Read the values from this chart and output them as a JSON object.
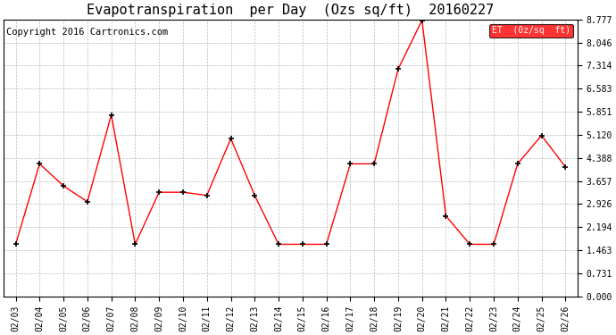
{
  "title": "Evapotranspiration  per Day  (Ozs sq/ft)  20160227",
  "copyright": "Copyright 2016 Cartronics.com",
  "legend_label": "ET  (0z/sq  ft)",
  "dates": [
    "02/03",
    "02/04",
    "02/05",
    "02/06",
    "02/07",
    "02/08",
    "02/09",
    "02/10",
    "02/11",
    "02/12",
    "02/13",
    "02/14",
    "02/15",
    "02/16",
    "02/17",
    "02/18",
    "02/19",
    "02/20",
    "02/21",
    "02/22",
    "02/23",
    "02/24",
    "02/25",
    "02/26"
  ],
  "values": [
    1.65,
    4.2,
    3.5,
    3.0,
    5.75,
    1.65,
    3.3,
    3.3,
    3.2,
    5.0,
    3.2,
    1.65,
    1.65,
    1.65,
    4.2,
    4.2,
    7.2,
    8.75,
    2.55,
    1.65,
    1.65,
    4.2,
    5.1,
    4.1
  ],
  "yticks": [
    0.0,
    0.731,
    1.463,
    2.194,
    2.926,
    3.657,
    4.388,
    5.12,
    5.851,
    6.583,
    7.314,
    8.046,
    8.777
  ],
  "ylim": [
    0.0,
    8.777
  ],
  "line_color": "red",
  "marker_color": "black",
  "bg_color": "white",
  "grid_color": "#bbbbbb",
  "title_fontsize": 11,
  "copyright_fontsize": 7.5,
  "tick_fontsize": 7,
  "legend_bg": "red",
  "legend_fg": "white",
  "fig_width": 6.9,
  "fig_height": 3.75,
  "dpi": 100
}
